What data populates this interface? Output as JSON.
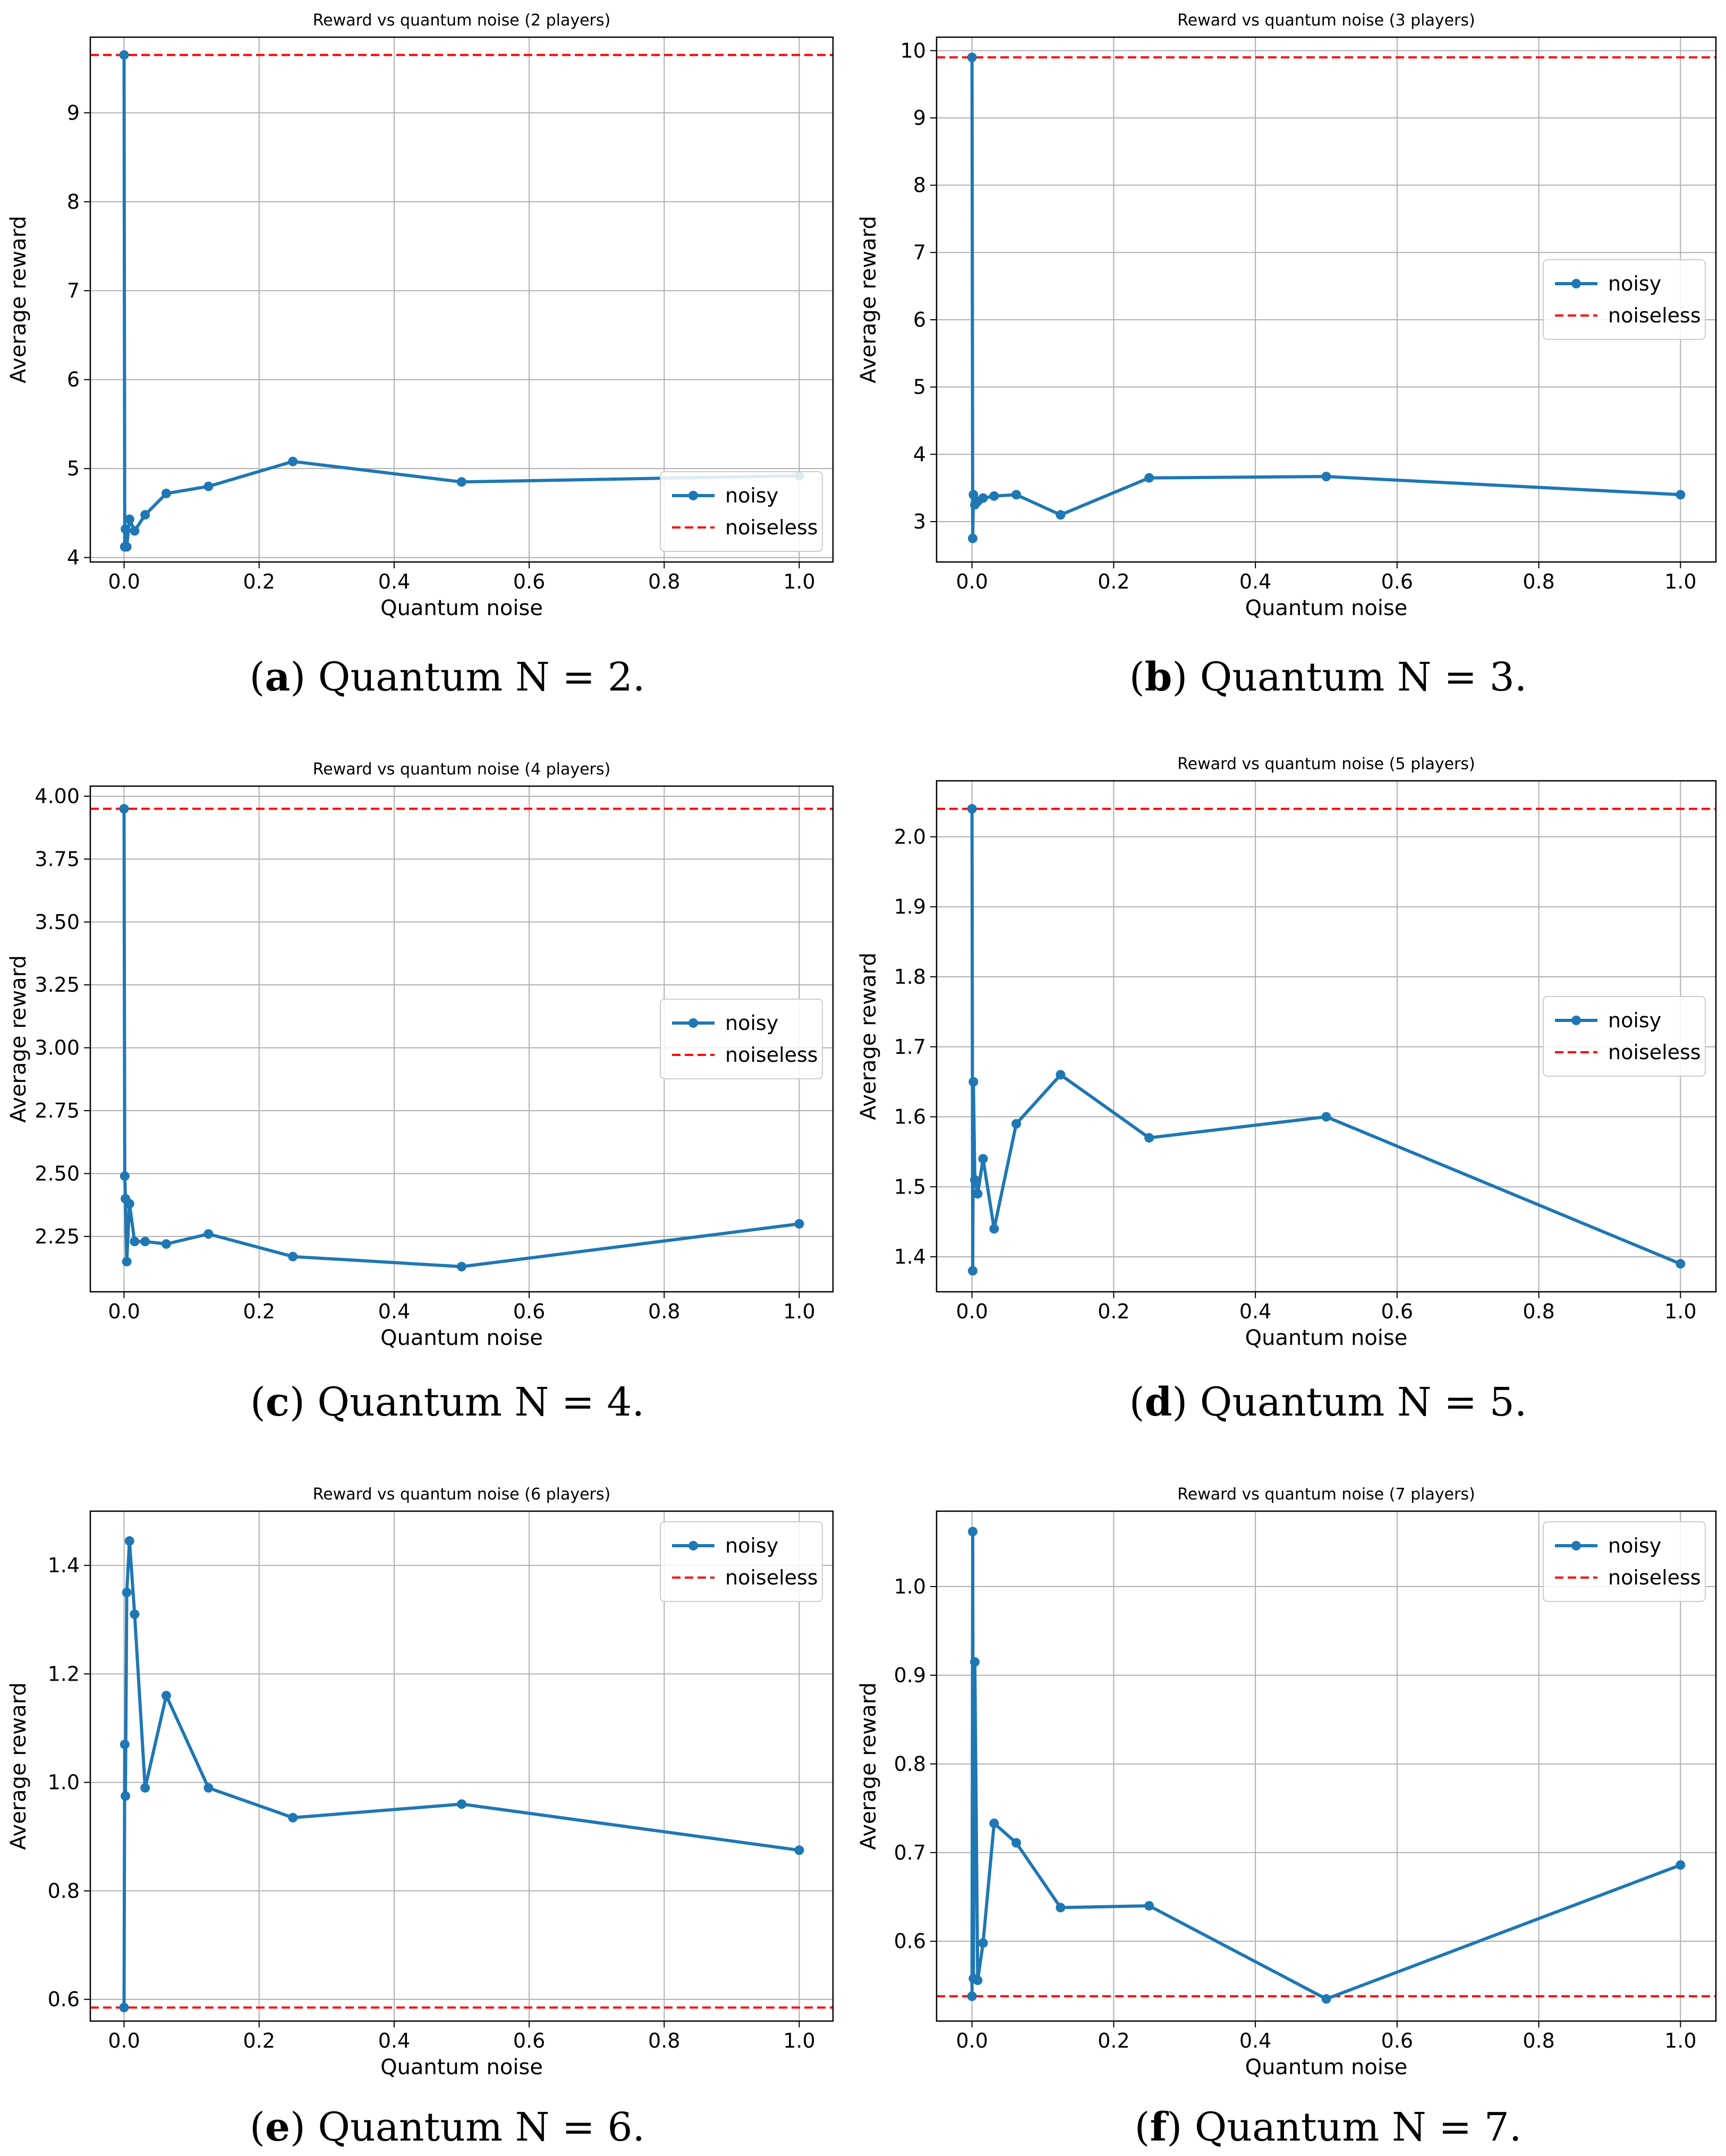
{
  "figure": {
    "panels": [
      {
        "letter": "a",
        "caption": " Quantum N = 2."
      },
      {
        "letter": "b",
        "caption": " Quantum N = 3."
      },
      {
        "letter": "c",
        "caption": " Quantum N = 4."
      },
      {
        "letter": "d",
        "caption": " Quantum N = 5."
      },
      {
        "letter": "e",
        "caption": " Quantum N = 6."
      },
      {
        "letter": "f",
        "caption": " Quantum N = 7."
      }
    ]
  },
  "colors": {
    "noisy": "#1f77b4",
    "noiseless": "#ff0000",
    "grid": "#b0b0b0",
    "axis": "#000000",
    "legend_border": "#cccccc"
  },
  "chart_data": [
    {
      "type": "line",
      "title": "Reward vs quantum noise (2 players)",
      "xlabel": "Quantum noise",
      "ylabel": "Average reward",
      "xlim": [
        -0.05,
        1.05
      ],
      "ylim": [
        3.95,
        9.85
      ],
      "xticks": [
        0.0,
        0.2,
        0.4,
        0.6,
        0.8,
        1.0
      ],
      "xtick_labels": [
        "0.0",
        "0.2",
        "0.4",
        "0.6",
        "0.8",
        "1.0"
      ],
      "yticks": [
        4,
        5,
        6,
        7,
        8,
        9
      ],
      "ytick_labels": [
        "4",
        "5",
        "6",
        "7",
        "8",
        "9"
      ],
      "grid": true,
      "legend_position": "lower-right",
      "series": [
        {
          "name": "noisy",
          "style": "solid-marker",
          "x": [
            0,
            0.001,
            0.002,
            0.004,
            0.008,
            0.0156,
            0.0312,
            0.0625,
            0.125,
            0.25,
            0.5,
            1.0
          ],
          "y": [
            9.65,
            4.12,
            4.32,
            4.12,
            4.43,
            4.3,
            4.48,
            4.72,
            4.8,
            5.08,
            4.85,
            4.92
          ]
        },
        {
          "name": "noiseless",
          "style": "dashed",
          "y": 9.65
        }
      ]
    },
    {
      "type": "line",
      "title": "Reward vs quantum noise (3 players)",
      "xlabel": "Quantum noise",
      "ylabel": "Average reward",
      "xlim": [
        -0.05,
        1.05
      ],
      "ylim": [
        2.4,
        10.2
      ],
      "xticks": [
        0.0,
        0.2,
        0.4,
        0.6,
        0.8,
        1.0
      ],
      "xtick_labels": [
        "0.0",
        "0.2",
        "0.4",
        "0.6",
        "0.8",
        "1.0"
      ],
      "yticks": [
        3,
        4,
        5,
        6,
        7,
        8,
        9,
        10
      ],
      "ytick_labels": [
        "3",
        "4",
        "5",
        "6",
        "7",
        "8",
        "9",
        "10"
      ],
      "grid": true,
      "legend_position": "center-right",
      "series": [
        {
          "name": "noisy",
          "style": "solid-marker",
          "x": [
            0,
            0.001,
            0.002,
            0.004,
            0.008,
            0.0156,
            0.0312,
            0.0625,
            0.125,
            0.25,
            0.5,
            1.0
          ],
          "y": [
            9.9,
            2.75,
            3.4,
            3.25,
            3.3,
            3.35,
            3.38,
            3.4,
            3.1,
            3.65,
            3.67,
            3.4
          ]
        },
        {
          "name": "noiseless",
          "style": "dashed",
          "y": 9.9
        }
      ]
    },
    {
      "type": "line",
      "title": "Reward vs quantum noise (4 players)",
      "xlabel": "Quantum noise",
      "ylabel": "Average reward",
      "xlim": [
        -0.05,
        1.05
      ],
      "ylim": [
        2.03,
        4.04
      ],
      "xticks": [
        0.0,
        0.2,
        0.4,
        0.6,
        0.8,
        1.0
      ],
      "xtick_labels": [
        "0.0",
        "0.2",
        "0.4",
        "0.6",
        "0.8",
        "1.0"
      ],
      "yticks": [
        2.25,
        2.5,
        2.75,
        3.0,
        3.25,
        3.5,
        3.75,
        4.0
      ],
      "ytick_labels": [
        "2.25",
        "2.50",
        "2.75",
        "3.00",
        "3.25",
        "3.50",
        "3.75",
        "4.00"
      ],
      "grid": true,
      "legend_position": "center-right",
      "series": [
        {
          "name": "noisy",
          "style": "solid-marker",
          "x": [
            0,
            0.001,
            0.002,
            0.004,
            0.008,
            0.0156,
            0.0312,
            0.0625,
            0.125,
            0.25,
            0.5,
            1.0
          ],
          "y": [
            3.95,
            2.49,
            2.4,
            2.15,
            2.38,
            2.23,
            2.23,
            2.22,
            2.26,
            2.17,
            2.13,
            2.3
          ]
        },
        {
          "name": "noiseless",
          "style": "dashed",
          "y": 3.95
        }
      ]
    },
    {
      "type": "line",
      "title": "Reward vs quantum noise (5 players)",
      "xlabel": "Quantum noise",
      "ylabel": "Average reward",
      "xlim": [
        -0.05,
        1.05
      ],
      "ylim": [
        1.35,
        2.08
      ],
      "xticks": [
        0.0,
        0.2,
        0.4,
        0.6,
        0.8,
        1.0
      ],
      "xtick_labels": [
        "0.0",
        "0.2",
        "0.4",
        "0.6",
        "0.8",
        "1.0"
      ],
      "yticks": [
        1.4,
        1.5,
        1.6,
        1.7,
        1.8,
        1.9,
        2.0
      ],
      "ytick_labels": [
        "1.4",
        "1.5",
        "1.6",
        "1.7",
        "1.8",
        "1.9",
        "2.0"
      ],
      "grid": true,
      "legend_position": "center-right",
      "series": [
        {
          "name": "noisy",
          "style": "solid-marker",
          "x": [
            0,
            0.001,
            0.002,
            0.004,
            0.008,
            0.0156,
            0.0312,
            0.0625,
            0.125,
            0.25,
            0.5,
            1.0
          ],
          "y": [
            2.04,
            1.38,
            1.65,
            1.51,
            1.49,
            1.54,
            1.44,
            1.59,
            1.66,
            1.57,
            1.6,
            1.39
          ]
        },
        {
          "name": "noiseless",
          "style": "dashed",
          "y": 2.04
        }
      ]
    },
    {
      "type": "line",
      "title": "Reward vs quantum noise (6 players)",
      "xlabel": "Quantum noise",
      "ylabel": "Average reward",
      "xlim": [
        -0.05,
        1.05
      ],
      "ylim": [
        0.56,
        1.5
      ],
      "xticks": [
        0.0,
        0.2,
        0.4,
        0.6,
        0.8,
        1.0
      ],
      "xtick_labels": [
        "0.0",
        "0.2",
        "0.4",
        "0.6",
        "0.8",
        "1.0"
      ],
      "yticks": [
        0.6,
        0.8,
        1.0,
        1.2,
        1.4
      ],
      "ytick_labels": [
        "0.6",
        "0.8",
        "1.0",
        "1.2",
        "1.4"
      ],
      "grid": true,
      "legend_position": "top-right",
      "series": [
        {
          "name": "noisy",
          "style": "solid-marker",
          "x": [
            0,
            0.001,
            0.002,
            0.004,
            0.008,
            0.0156,
            0.0312,
            0.0625,
            0.125,
            0.25,
            0.5,
            1.0
          ],
          "y": [
            0.585,
            1.07,
            0.975,
            1.35,
            1.445,
            1.31,
            0.99,
            1.16,
            0.99,
            0.935,
            0.96,
            0.875
          ]
        },
        {
          "name": "noiseless",
          "style": "dashed",
          "y": 0.585
        }
      ]
    },
    {
      "type": "line",
      "title": "Reward vs quantum noise (7 players)",
      "xlabel": "Quantum noise",
      "ylabel": "Average reward",
      "xlim": [
        -0.05,
        1.05
      ],
      "ylim": [
        0.51,
        1.085
      ],
      "xticks": [
        0.0,
        0.2,
        0.4,
        0.6,
        0.8,
        1.0
      ],
      "xtick_labels": [
        "0.0",
        "0.2",
        "0.4",
        "0.6",
        "0.8",
        "1.0"
      ],
      "yticks": [
        0.6,
        0.7,
        0.8,
        0.9,
        1.0
      ],
      "ytick_labels": [
        "0.6",
        "0.7",
        "0.8",
        "0.9",
        "1.0"
      ],
      "grid": true,
      "legend_position": "top-right",
      "series": [
        {
          "name": "noisy",
          "style": "solid-marker",
          "x": [
            0,
            0.001,
            0.002,
            0.004,
            0.008,
            0.0156,
            0.0312,
            0.0625,
            0.125,
            0.25,
            0.5,
            1.0
          ],
          "y": [
            0.538,
            1.062,
            0.558,
            0.915,
            0.556,
            0.598,
            0.733,
            0.711,
            0.638,
            0.64,
            0.535,
            0.686
          ]
        },
        {
          "name": "noiseless",
          "style": "dashed",
          "y": 0.538
        }
      ]
    }
  ]
}
